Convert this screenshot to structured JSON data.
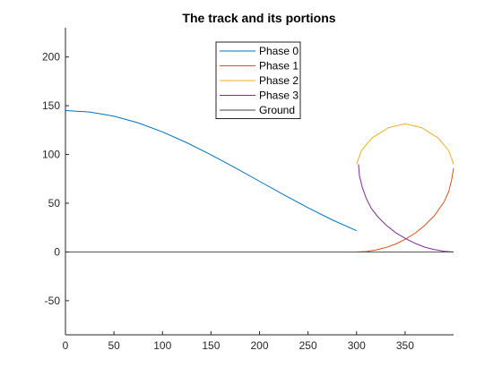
{
  "chart_data": {
    "type": "line",
    "title": "The track and its portions",
    "xlabel": "",
    "ylabel": "",
    "xlim": [
      0,
      400
    ],
    "ylim": [
      -85,
      230
    ],
    "xticks": [
      0,
      50,
      100,
      150,
      200,
      250,
      300,
      350
    ],
    "yticks": [
      -50,
      0,
      50,
      100,
      150,
      200
    ],
    "grid": false,
    "legend": {
      "placement": "top-center"
    },
    "series": [
      {
        "name": "Phase 0",
        "color": "#0072BD",
        "points": [
          [
            0,
            145
          ],
          [
            25,
            143.6
          ],
          [
            50,
            139.3
          ],
          [
            75,
            132.4
          ],
          [
            100,
            123.2
          ],
          [
            125,
            112.1
          ],
          [
            150,
            99.6
          ],
          [
            175,
            86.3
          ],
          [
            200,
            72.5
          ],
          [
            225,
            58.7
          ],
          [
            250,
            45.4
          ],
          [
            275,
            32.9
          ],
          [
            300,
            21.8
          ]
        ]
      },
      {
        "name": "Phase 1",
        "color": "#D95319",
        "points": [
          [
            300,
            0
          ],
          [
            310,
            0.5
          ],
          [
            320,
            2
          ],
          [
            330,
            4.5
          ],
          [
            340,
            8
          ],
          [
            350,
            13
          ],
          [
            360,
            19
          ],
          [
            370,
            27
          ],
          [
            380,
            37
          ],
          [
            390,
            51
          ],
          [
            395,
            62
          ],
          [
            398,
            74
          ],
          [
            400,
            86
          ]
        ]
      },
      {
        "name": "Phase 2",
        "color": "#EDB120",
        "points": [
          [
            300,
            90
          ],
          [
            305,
            104
          ],
          [
            316,
            117
          ],
          [
            333,
            127.5
          ],
          [
            350,
            131.5
          ],
          [
            367,
            127.5
          ],
          [
            384,
            117
          ],
          [
            395,
            104
          ],
          [
            400,
            90
          ]
        ]
      },
      {
        "name": "Phase 3",
        "color": "#7E2F8E",
        "points": [
          [
            302,
            90
          ],
          [
            303,
            78
          ],
          [
            306,
            66
          ],
          [
            310,
            55
          ],
          [
            315,
            45
          ],
          [
            322,
            36
          ],
          [
            330,
            28
          ],
          [
            340,
            20
          ],
          [
            350,
            14
          ],
          [
            360,
            9
          ],
          [
            370,
            5
          ],
          [
            380,
            2.5
          ],
          [
            390,
            0.8
          ],
          [
            400,
            0
          ]
        ]
      },
      {
        "name": "Ground",
        "color": "#404040",
        "points": [
          [
            0,
            0
          ],
          [
            400,
            0
          ]
        ]
      }
    ]
  }
}
